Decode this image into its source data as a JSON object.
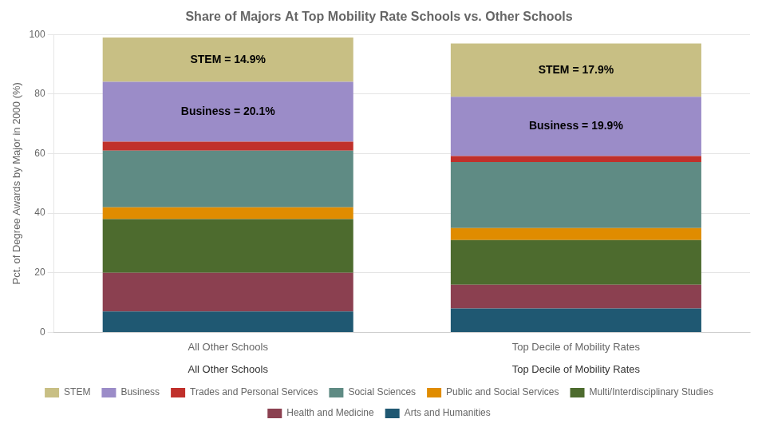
{
  "chart_data": {
    "type": "bar",
    "stacked": true,
    "title": "Share of Majors At Top Mobility Rate Schools vs. Other Schools",
    "ylabel": "Pct. of Degree Awards by Major in 2000 (%)",
    "categories": [
      "All Other Schools",
      "Top Decile of Mobility Rates"
    ],
    "series": [
      {
        "name": "Arts and Humanities",
        "color": "#1f5872",
        "values": [
          7.0,
          8.0
        ]
      },
      {
        "name": "Health and Medicine",
        "color": "#8b4050",
        "values": [
          13.0,
          8.0
        ]
      },
      {
        "name": "Multi/Interdisciplinary Studies",
        "color": "#4d6b2e",
        "values": [
          18.0,
          15.0
        ]
      },
      {
        "name": "Public and Social Services",
        "color": "#e08c00",
        "values": [
          4.0,
          4.0
        ]
      },
      {
        "name": "Social Sciences",
        "color": "#5f8b84",
        "values": [
          19.0,
          22.2
        ]
      },
      {
        "name": "Trades and Personal Services",
        "color": "#c0302b",
        "values": [
          3.0,
          2.0
        ]
      },
      {
        "name": "Business",
        "color": "#9b8cc8",
        "values": [
          20.1,
          19.9
        ]
      },
      {
        "name": "STEM",
        "color": "#c8bf84",
        "values": [
          14.9,
          17.9
        ]
      }
    ],
    "annotations": [
      {
        "text": "STEM = 14.9%",
        "category": "All Other Schools",
        "series": "STEM"
      },
      {
        "text": "Business = 20.1%",
        "category": "All Other Schools",
        "series": "Business"
      },
      {
        "text": "STEM = 17.9%",
        "category": "Top Decile of Mobility Rates",
        "series": "STEM"
      },
      {
        "text": "Business = 19.9%",
        "category": "Top Decile of Mobility Rates",
        "series": "Business"
      },
      {
        "text": "All Other Schools",
        "category": "All Other Schools"
      },
      {
        "text": "Top Decile of Mobility Rates",
        "category": "Top Decile of Mobility Rates"
      }
    ],
    "ylim": [
      0,
      100
    ],
    "yticks": [
      0,
      20,
      40,
      60,
      80,
      100
    ],
    "grid": true,
    "legend": "bottom"
  }
}
